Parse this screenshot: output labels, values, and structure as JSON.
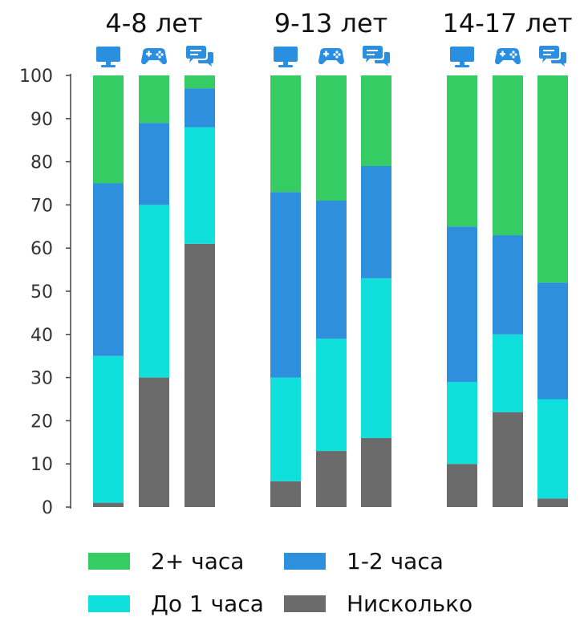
{
  "chart_data": {
    "type": "bar",
    "stacked": true,
    "ylim": [
      0,
      100
    ],
    "yticks": [
      0,
      10,
      20,
      30,
      40,
      50,
      60,
      70,
      80,
      90,
      100
    ],
    "groups": [
      {
        "label": "4-8 лет",
        "bars": [
          {
            "icon": "monitor-icon",
            "values": {
              "none": 1,
              "under1": 34,
              "h1_2": 40,
              "h2plus": 25
            }
          },
          {
            "icon": "gamepad-icon",
            "values": {
              "none": 30,
              "under1": 40,
              "h1_2": 19,
              "h2plus": 11
            }
          },
          {
            "icon": "chat-icon",
            "values": {
              "none": 61,
              "under1": 27,
              "h1_2": 9,
              "h2plus": 3
            }
          }
        ]
      },
      {
        "label": "9-13 лет",
        "bars": [
          {
            "icon": "monitor-icon",
            "values": {
              "none": 6,
              "under1": 24,
              "h1_2": 43,
              "h2plus": 27
            }
          },
          {
            "icon": "gamepad-icon",
            "values": {
              "none": 13,
              "under1": 26,
              "h1_2": 32,
              "h2plus": 29
            }
          },
          {
            "icon": "chat-icon",
            "values": {
              "none": 16,
              "under1": 37,
              "h1_2": 26,
              "h2plus": 21
            }
          }
        ]
      },
      {
        "label": "14-17 лет",
        "bars": [
          {
            "icon": "monitor-icon",
            "values": {
              "none": 10,
              "under1": 19,
              "h1_2": 36,
              "h2plus": 35
            }
          },
          {
            "icon": "gamepad-icon",
            "values": {
              "none": 22,
              "under1": 18,
              "h1_2": 23,
              "h2plus": 37
            }
          },
          {
            "icon": "chat-icon",
            "values": {
              "none": 2,
              "under1": 23,
              "h1_2": 27,
              "h2plus": 48
            }
          }
        ]
      }
    ],
    "series": [
      {
        "key": "h2plus",
        "name": "2+ часа",
        "color": "#35cc63"
      },
      {
        "key": "h1_2",
        "name": "1-2 часа",
        "color": "#2e8fdc"
      },
      {
        "key": "under1",
        "name": "До 1 часа",
        "color": "#0fe0dc"
      },
      {
        "key": "none",
        "name": "Нисколько",
        "color": "#6b6b6b"
      }
    ],
    "icon_color": "#2a8fe0",
    "legend_position": "bottom"
  }
}
